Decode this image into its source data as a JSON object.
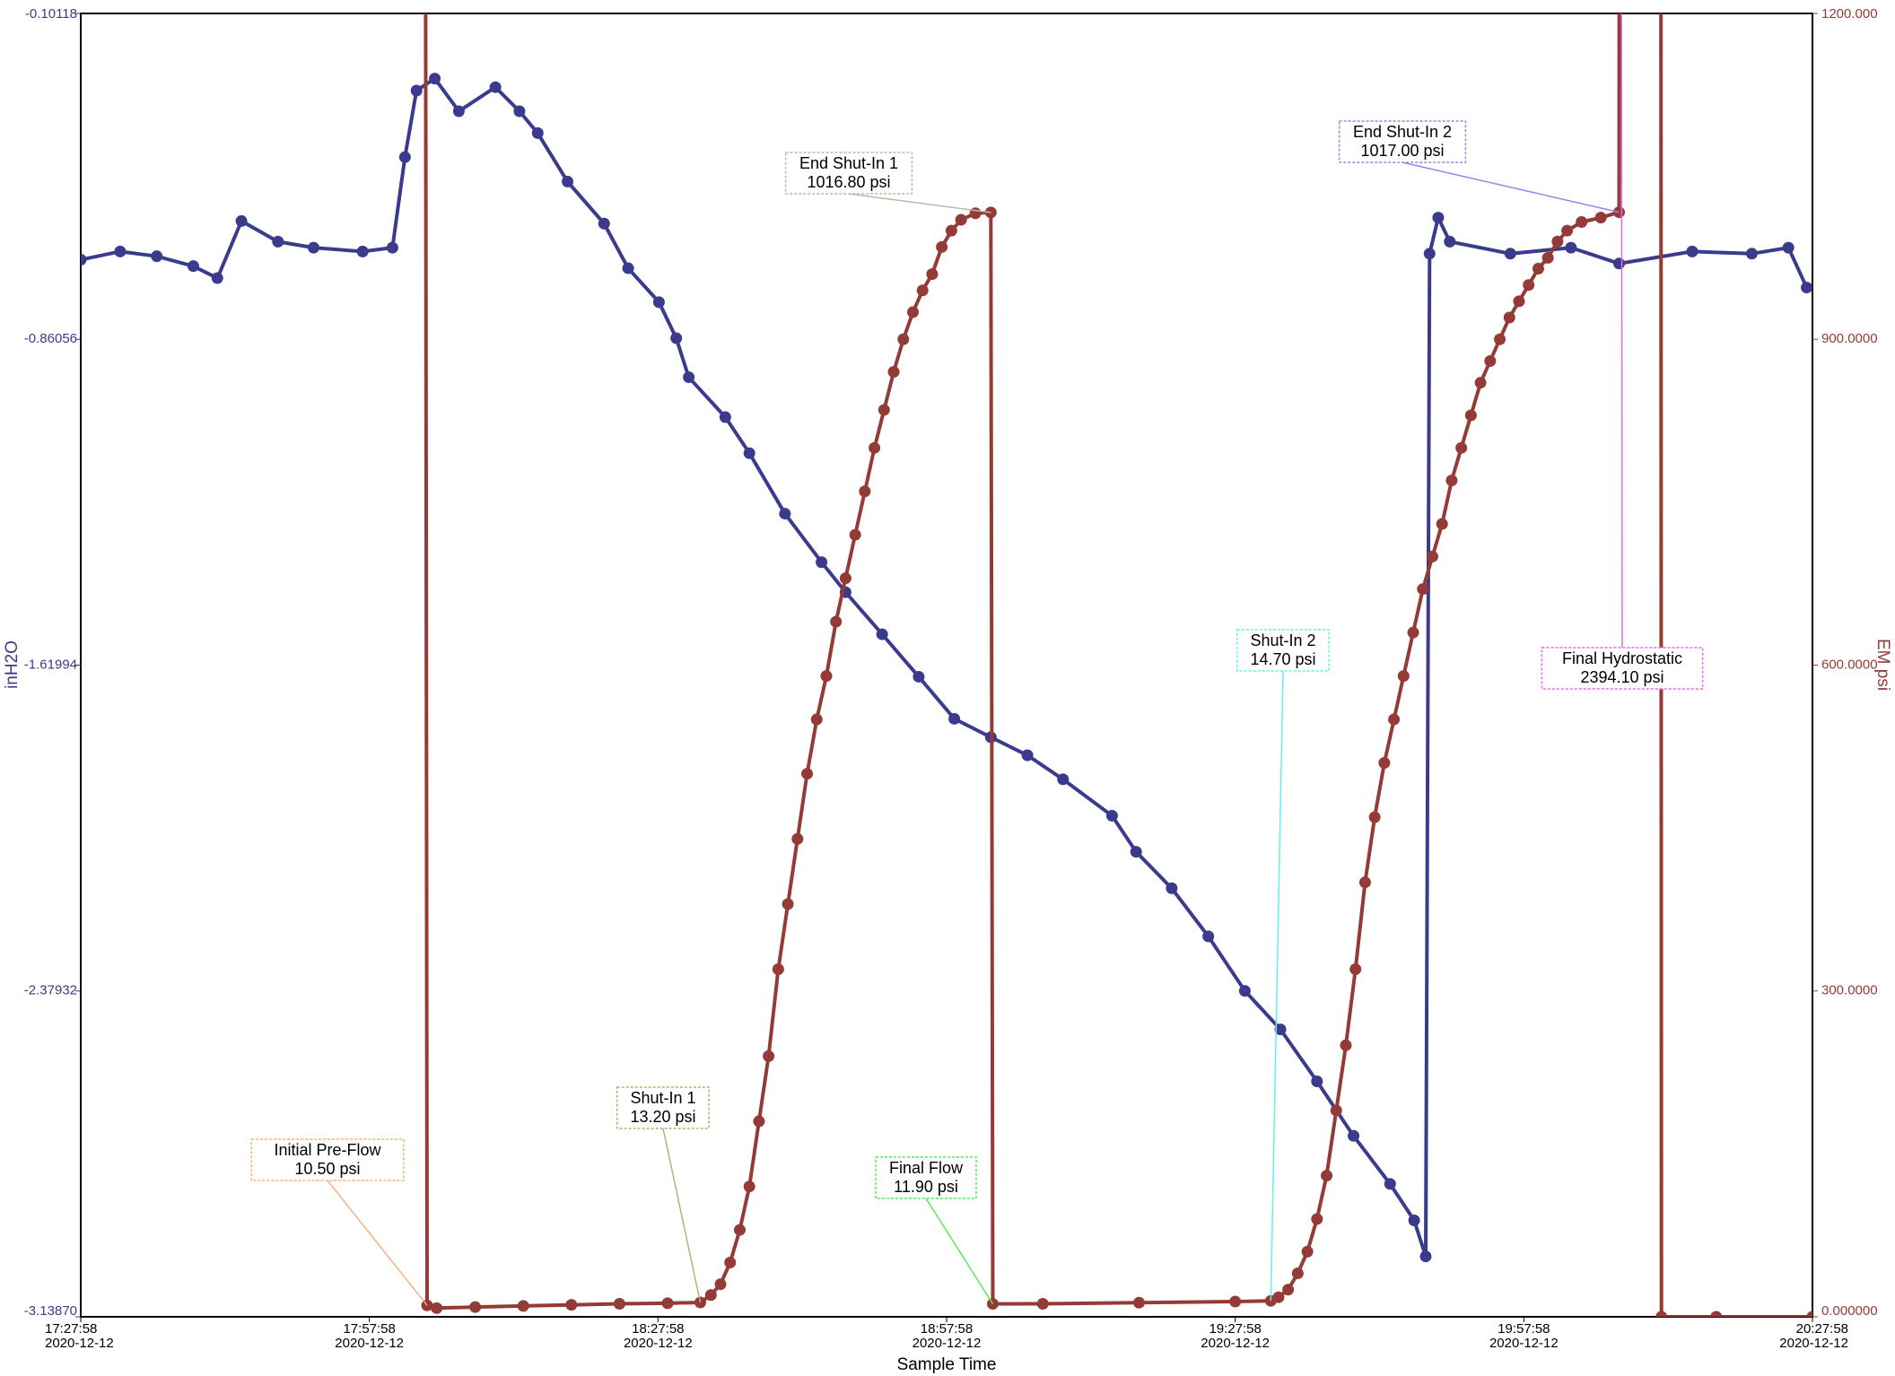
{
  "chart_data": {
    "type": "line",
    "xlabel": "Sample Time",
    "ylabel": "inH2O",
    "y2label": "EM psi",
    "xlim": [
      "2020-12-12 17:27:58",
      "2020-12-12 20:27:58"
    ],
    "xticks": [
      {
        "value": "2020-12-12 17:27:58",
        "label": [
          "17:27:58",
          "2020-12-12"
        ]
      },
      {
        "value": "2020-12-12 17:57:58",
        "label": [
          "17:57:58",
          "2020-12-12"
        ]
      },
      {
        "value": "2020-12-12 18:27:58",
        "label": [
          "18:27:58",
          "2020-12-12"
        ]
      },
      {
        "value": "2020-12-12 18:57:58",
        "label": [
          "18:57:58",
          "2020-12-12"
        ]
      },
      {
        "value": "2020-12-12 19:27:58",
        "label": [
          "19:27:58",
          "2020-12-12"
        ]
      },
      {
        "value": "2020-12-12 19:57:58",
        "label": [
          "19:57:58",
          "2020-12-12"
        ]
      },
      {
        "value": "2020-12-12 20:27:58",
        "label": [
          "20:27:58",
          "2020-12-12"
        ]
      }
    ],
    "ylim": [
      -3.1387,
      -0.10118
    ],
    "yticks": [
      {
        "value": -3.1387,
        "label": "-3.13870"
      },
      -2.37932,
      -1.61994,
      -0.86056,
      -0.10118
    ],
    "y2lim": [
      0,
      1200
    ],
    "y2ticks": [
      {
        "value": 0,
        "label": "0.000000"
      },
      {
        "value": 300,
        "label": "300.0000"
      },
      {
        "value": 600,
        "label": "600.0000"
      },
      {
        "value": 900,
        "label": "900.0000"
      },
      {
        "value": 1200,
        "label": "1200.000"
      }
    ],
    "series": [
      {
        "name": "inH2O",
        "color": "#3b3b8e",
        "axis": "y",
        "x": [
          "2020-12-12 17:27:58",
          "2020-12-12 17:32:04",
          "2020-12-12 17:35:52",
          "2020-12-12 17:39:40",
          "2020-12-12 17:42:10",
          "2020-12-12 17:44:40",
          "2020-12-12 17:48:28",
          "2020-12-12 17:52:10",
          "2020-12-12 17:57:16",
          "2020-12-12 18:00:22",
          "2020-12-12 18:01:40",
          "2020-12-12 18:02:52",
          "2020-12-12 18:04:46",
          "2020-12-12 18:07:16",
          "2020-12-12 18:11:04",
          "2020-12-12 18:13:34",
          "2020-12-12 18:15:28",
          "2020-12-12 18:18:34",
          "2020-12-12 18:22:22",
          "2020-12-12 18:24:52",
          "2020-12-12 18:28:04",
          "2020-12-12 18:29:52",
          "2020-12-12 18:31:10",
          "2020-12-12 18:34:58",
          "2020-12-12 18:37:28",
          "2020-12-12 18:41:10",
          "2020-12-12 18:44:58",
          "2020-12-12 18:47:28",
          "2020-12-12 18:51:16",
          "2020-12-12 18:55:04",
          "2020-12-12 18:58:46",
          "2020-12-12 19:02:34",
          "2020-12-12 19:06:22",
          "2020-12-12 19:10:04",
          "2020-12-12 19:15:10",
          "2020-12-12 19:17:40",
          "2020-12-12 19:21:22",
          "2020-12-12 19:25:10",
          "2020-12-12 19:28:58",
          "2020-12-12 19:32:40",
          "2020-12-12 19:36:28",
          "2020-12-12 19:40:16",
          "2020-12-12 19:44:04",
          "2020-12-12 19:46:34",
          "2020-12-12 19:47:46",
          "2020-12-12 19:48:10",
          "2020-12-12 19:49:04",
          "2020-12-12 19:50:16",
          "2020-12-12 19:56:34",
          "2020-12-12 20:02:52",
          "2020-12-12 20:07:52",
          "2020-12-12 20:15:28",
          "2020-12-12 20:21:40",
          "2020-12-12 20:25:28",
          "2020-12-12 20:27:22"
        ],
        "values": [
          -0.675,
          -0.656,
          -0.667,
          -0.69,
          -0.718,
          -0.585,
          -0.633,
          -0.647,
          -0.656,
          -0.647,
          -0.436,
          -0.281,
          -0.253,
          -0.329,
          -0.273,
          -0.329,
          -0.38,
          -0.493,
          -0.591,
          -0.695,
          -0.774,
          -0.858,
          -0.949,
          -1.042,
          -1.126,
          -1.267,
          -1.38,
          -1.45,
          -1.548,
          -1.647,
          -1.745,
          -1.788,
          -1.83,
          -1.886,
          -1.971,
          -2.055,
          -2.14,
          -2.252,
          -2.379,
          -2.469,
          -2.59,
          -2.717,
          -2.829,
          -2.914,
          -2.998,
          -0.661,
          -0.577,
          -0.633,
          -0.661,
          -0.647,
          -0.684,
          -0.656,
          -0.661,
          -0.647,
          -0.74
        ]
      },
      {
        "name": "EM psi",
        "color": "#943b38",
        "axis": "y2",
        "x": [
          "2020-12-12 18:03:40",
          "2020-12-12 18:03:58",
          "2020-12-12 18:04:58",
          "2020-12-12 18:08:58",
          "2020-12-12 18:13:58",
          "2020-12-12 18:18:58",
          "2020-12-12 18:23:58",
          "2020-12-12 18:28:58",
          "2020-12-12 18:32:22",
          "2020-12-12 18:33:28",
          "2020-12-12 18:34:28",
          "2020-12-12 18:35:28",
          "2020-12-12 18:36:28",
          "2020-12-12 18:37:28",
          "2020-12-12 18:38:28",
          "2020-12-12 18:39:28",
          "2020-12-12 18:40:28",
          "2020-12-12 18:41:28",
          "2020-12-12 18:42:28",
          "2020-12-12 18:43:28",
          "2020-12-12 18:44:28",
          "2020-12-12 18:45:28",
          "2020-12-12 18:46:28",
          "2020-12-12 18:47:28",
          "2020-12-12 18:48:28",
          "2020-12-12 18:49:28",
          "2020-12-12 18:50:28",
          "2020-12-12 18:51:28",
          "2020-12-12 18:52:28",
          "2020-12-12 18:53:28",
          "2020-12-12 18:54:28",
          "2020-12-12 18:55:28",
          "2020-12-12 18:56:28",
          "2020-12-12 18:57:28",
          "2020-12-12 18:58:28",
          "2020-12-12 18:59:28",
          "2020-12-12 19:00:58",
          "2020-12-12 19:02:34",
          "2020-12-12 19:02:46",
          "2020-12-12 19:07:58",
          "2020-12-12 19:17:58",
          "2020-12-12 19:27:58",
          "2020-12-12 19:31:40",
          "2020-12-12 19:32:28",
          "2020-12-12 19:33:28",
          "2020-12-12 19:34:28",
          "2020-12-12 19:35:28",
          "2020-12-12 19:36:28",
          "2020-12-12 19:37:28",
          "2020-12-12 19:38:28",
          "2020-12-12 19:39:28",
          "2020-12-12 19:40:28",
          "2020-12-12 19:41:28",
          "2020-12-12 19:42:28",
          "2020-12-12 19:43:28",
          "2020-12-12 19:44:28",
          "2020-12-12 19:45:28",
          "2020-12-12 19:46:28",
          "2020-12-12 19:47:28",
          "2020-12-12 19:48:28",
          "2020-12-12 19:49:28",
          "2020-12-12 19:50:28",
          "2020-12-12 19:51:28",
          "2020-12-12 19:52:28",
          "2020-12-12 19:53:28",
          "2020-12-12 19:54:28",
          "2020-12-12 19:55:28",
          "2020-12-12 19:56:28",
          "2020-12-12 19:57:28",
          "2020-12-12 19:58:28",
          "2020-12-12 19:59:28",
          "2020-12-12 20:00:28",
          "2020-12-12 20:01:28",
          "2020-12-12 20:02:28",
          "2020-12-12 20:03:58",
          "2020-12-12 20:05:58",
          "2020-12-12 20:07:52",
          "2020-12-12 20:07:58",
          "2020-12-12 20:12:10",
          "2020-12-12 20:12:16",
          "2020-12-12 20:17:58",
          "2020-12-12 20:27:58"
        ],
        "values": [
          2390,
          10.5,
          8,
          9,
          10,
          11,
          12,
          12.5,
          13.2,
          20,
          30,
          50,
          80,
          120,
          180,
          240,
          320,
          380,
          440,
          500,
          550,
          590,
          640,
          680,
          720,
          760,
          800,
          835,
          870,
          900,
          925,
          945,
          960,
          985,
          1000,
          1010,
          1016,
          1016.8,
          11.9,
          12,
          13,
          14,
          14.7,
          18,
          25,
          40,
          60,
          90,
          130,
          190,
          250,
          320,
          400,
          460,
          510,
          550,
          590,
          630,
          670,
          700,
          730,
          770,
          800,
          830,
          860,
          880,
          900,
          920,
          935,
          950,
          965,
          975,
          990,
          1000,
          1008,
          1012,
          1017,
          2394.1,
          2394.1,
          0,
          0,
          0
        ]
      }
    ],
    "annotations": [
      {
        "label": "Initial Pre-Flow",
        "value": 10.5,
        "value_label": "10.50 psi",
        "x": "2020-12-12 18:03:58",
        "color": "#f7b07e"
      },
      {
        "label": "Shut-In 1",
        "value": 13.2,
        "value_label": "13.20 psi",
        "x": "2020-12-12 18:32:22",
        "color": "#b2b27e"
      },
      {
        "label": "End Shut-In 1",
        "value": 1016.8,
        "value_label": "1016.80 psi",
        "x": "2020-12-12 19:02:34",
        "color": "#b4bca8"
      },
      {
        "label": "Final Flow",
        "value": 11.9,
        "value_label": "11.90 psi",
        "x": "2020-12-12 19:02:46",
        "color": "#55ee55"
      },
      {
        "label": "Shut-In 2",
        "value": 14.7,
        "value_label": "14.70 psi",
        "x": "2020-12-12 19:31:40",
        "color": "#66eeee"
      },
      {
        "label": "End Shut-In 2",
        "value": 1017,
        "value_label": "1017.00 psi",
        "x": "2020-12-12 20:07:52",
        "color": "#8a8aee"
      },
      {
        "label": "Final Hydrostatic",
        "value": 2394.1,
        "value_label": "2394.10 psi",
        "x": "2020-12-12 20:07:58",
        "color": "#ee66ee"
      }
    ]
  }
}
